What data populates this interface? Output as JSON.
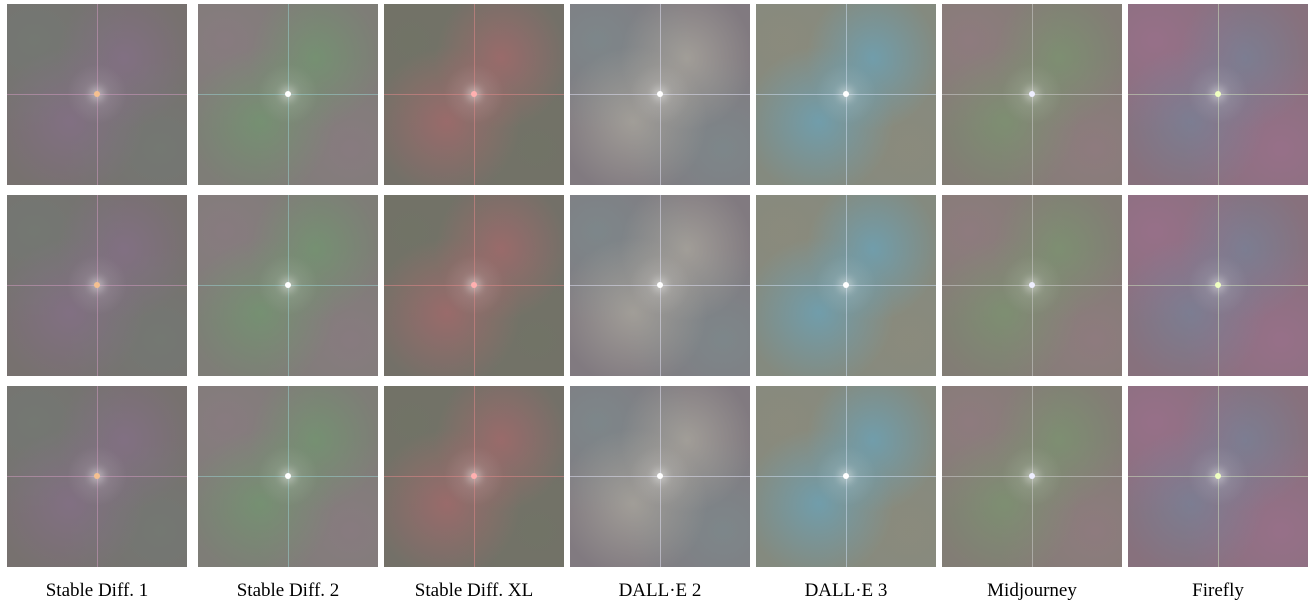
{
  "figure": {
    "columns": [
      {
        "label": "Stable Diff. 1"
      },
      {
        "label": "Stable Diff. 2"
      },
      {
        "label": "Stable Diff. XL"
      },
      {
        "label": "DALL·E 2"
      },
      {
        "label": "DALL·E 3"
      },
      {
        "label": "Midjourney"
      },
      {
        "label": "Firefly"
      }
    ]
  }
}
